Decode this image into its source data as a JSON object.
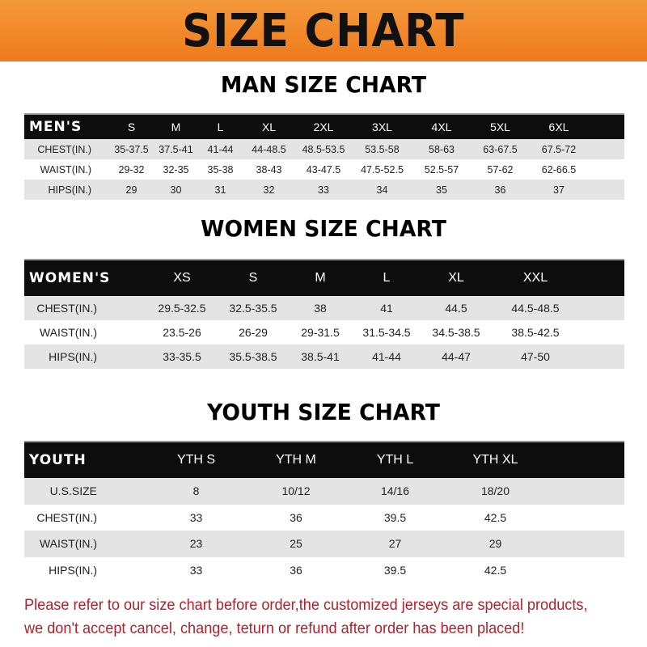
{
  "banner_title": "SIZE CHART",
  "men": {
    "title": "MAN SIZE CHART",
    "header_label": "MEN'S",
    "sizes": [
      "S",
      "M",
      "L",
      "XL",
      "2XL",
      "3XL",
      "4XL",
      "5XL",
      "6XL"
    ],
    "rows": [
      {
        "label": "CHEST(IN.)",
        "values": [
          "35-37.5",
          "37.5-41",
          "41-44",
          "44-48.5",
          "48.5-53.5",
          "53.5-58",
          "58-63",
          "63-67.5",
          "67.5-72"
        ]
      },
      {
        "label": "WAIST(IN.)",
        "values": [
          "29-32",
          "32-35",
          "35-38",
          "38-43",
          "43-47.5",
          "47.5-52.5",
          "52.5-57",
          "57-62",
          "62-66.5"
        ]
      },
      {
        "label": "HIPS(IN.)",
        "values": [
          "29",
          "30",
          "31",
          "32",
          "33",
          "34",
          "35",
          "36",
          "37"
        ]
      }
    ]
  },
  "women": {
    "title": "WOMEN SIZE CHART",
    "header_label": "WOMEN'S",
    "sizes": [
      "XS",
      "S",
      "M",
      "L",
      "XL",
      "XXL"
    ],
    "rows": [
      {
        "label": "CHEST(IN.)",
        "values": [
          "29.5-32.5",
          "32.5-35.5",
          "38",
          "41",
          "44.5",
          "44.5-48.5"
        ]
      },
      {
        "label": "WAIST(IN.)",
        "values": [
          "23.5-26",
          "26-29",
          "29-31.5",
          "31.5-34.5",
          "34.5-38.5",
          "38.5-42.5"
        ]
      },
      {
        "label": "HIPS(IN.)",
        "values": [
          "33-35.5",
          "35.5-38.5",
          "38.5-41",
          "41-44",
          "44-47",
          "47-50"
        ]
      }
    ]
  },
  "youth": {
    "title": "YOUTH SIZE CHART",
    "header_label": "YOUTH",
    "sizes": [
      "YTH S",
      "YTH M",
      "YTH L",
      "YTH XL"
    ],
    "rows": [
      {
        "label": "U.S.SIZE",
        "values": [
          "8",
          "10/12",
          "14/16",
          "18/20"
        ]
      },
      {
        "label": "CHEST(IN.)",
        "values": [
          "33",
          "36",
          "39.5",
          "42.5"
        ]
      },
      {
        "label": "WAIST(IN.)",
        "values": [
          "23",
          "25",
          "27",
          "29"
        ]
      },
      {
        "label": "HIPS(IN.)",
        "values": [
          "33",
          "36",
          "39.5",
          "42.5"
        ]
      }
    ]
  },
  "note": {
    "line1": "Please refer to our size chart before order,the customized jerseys are special products,",
    "line2": "we don't accept cancel, change, teturn or refund after order has been placed!"
  },
  "colors": {
    "banner": "#ee7a1c",
    "header_row": "#0d0d0d",
    "stripe": "#e4e4e4",
    "note": "#b5202a"
  }
}
